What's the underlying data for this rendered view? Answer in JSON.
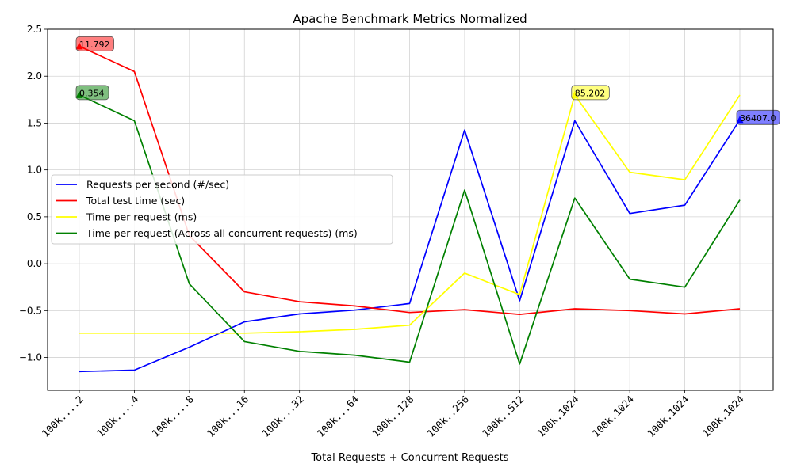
{
  "chart_data": {
    "type": "line",
    "title": "Apache Benchmark Metrics Normalized",
    "xlabel": "Total Requests + Concurrent Requests",
    "ylabel": "",
    "categories": [
      "100k....2",
      "100k....4",
      "100k....8",
      "100k...16",
      "100k...32",
      "100k...64",
      "100k..128",
      "100k..256",
      "100k..512",
      "100k.1024",
      "100k.1024",
      "100k.1024",
      "100k.1024"
    ],
    "ylim": [
      -1.35,
      2.5
    ],
    "yticks": [
      -1.0,
      -0.5,
      0.0,
      0.5,
      1.0,
      1.5,
      2.0,
      2.5
    ],
    "ytick_labels": [
      "−1.0",
      "−0.5",
      "0.0",
      "0.5",
      "1.0",
      "1.5",
      "2.0",
      "2.5"
    ],
    "grid": true,
    "legend_position": "center-left",
    "series": [
      {
        "name": "Requests per second (#/sec)",
        "color": "#0000ff",
        "values": [
          -1.15,
          -1.135,
          -0.89,
          -0.62,
          -0.535,
          -0.495,
          -0.425,
          1.425,
          -0.395,
          1.525,
          0.535,
          0.625,
          1.535
        ]
      },
      {
        "name": "Total test time (sec)",
        "color": "#ff0000",
        "values": [
          2.32,
          2.05,
          0.3,
          -0.3,
          -0.405,
          -0.45,
          -0.52,
          -0.49,
          -0.54,
          -0.48,
          -0.5,
          -0.535,
          -0.48
        ]
      },
      {
        "name": "Time per request (ms)",
        "color": "#ffff00",
        "values": [
          -0.74,
          -0.74,
          -0.74,
          -0.74,
          -0.725,
          -0.7,
          -0.655,
          -0.1,
          -0.33,
          1.8,
          0.975,
          0.895,
          1.8
        ]
      },
      {
        "name": "Time per request (Across all concurrent requests) (ms)",
        "color": "#008000",
        "values": [
          1.8,
          1.525,
          -0.215,
          -0.83,
          -0.935,
          -0.975,
          -1.05,
          0.785,
          -1.07,
          0.7,
          -0.165,
          -0.25,
          0.68
        ]
      }
    ],
    "annotations": [
      {
        "text": "11.792",
        "series": 1,
        "index": 0,
        "color": "#ff0000"
      },
      {
        "text": "0.354",
        "series": 3,
        "index": 0,
        "color": "#008000"
      },
      {
        "text": "85.202",
        "series": 2,
        "index": 9,
        "color": "#ffff00"
      },
      {
        "text": "36407.0",
        "series": 0,
        "index": 12,
        "color": "#0000ff"
      }
    ]
  }
}
